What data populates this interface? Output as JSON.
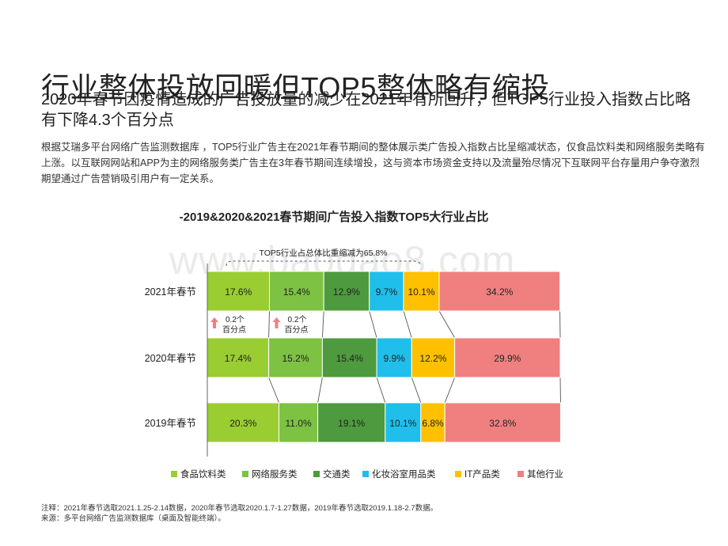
{
  "page": {
    "title": "行业整体投放回暖但TOP5整体略有缩投",
    "subtitle": "2020年春节因疫情造成的广告投放量的减少在2021年有所回升，但TOP5行业投入指数占比略有下降4.3个百分点",
    "description": "根据艾瑞多平台网络广告监测数据库 ，TOP5行业广告主在2021年春节期间的整体展示类广告投入指数占比呈缩减状态，仅食品饮料类和网络服务类略有上涨。以互联网网站和APP为主的网络服务类广告主在3年春节期间连续增投，这与资本市场资金支持以及流量殆尽情况下互联网平台存量用户争夺激烈期望通过广告营销吸引用户有一定关系。",
    "note": "注释：2021年春节选取2021.1.25-2.14数据，2020年春节选取2020.1.7-1.27数据，2019年春节选取2019.1.18-2.7数据。",
    "source": "来源：多平台网络广告监测数据库（桌面及智能终端）。",
    "watermark": "www.baogao8.com"
  },
  "chart_data": {
    "type": "bar",
    "orientation": "horizontal",
    "stacked": true,
    "title": "-2019&2020&2021春节期间广告投入指数TOP5大行业占比",
    "categories": [
      "2021年春节",
      "2020年春节",
      "2019年春节"
    ],
    "value_unit": "%",
    "xlim": [
      0,
      100
    ],
    "series": [
      {
        "name": "食品饮料类",
        "color": "#9ACD32",
        "values": [
          17.6,
          17.4,
          20.3
        ],
        "labels": [
          "17.6%",
          "17.4%",
          "20.3%"
        ]
      },
      {
        "name": "网络服务类",
        "color": "#7DC242",
        "values": [
          15.4,
          15.2,
          11.0
        ],
        "labels": [
          "15.4%",
          "15.2%",
          "11.0%"
        ]
      },
      {
        "name": "交通类",
        "color": "#4E9A3E",
        "values": [
          12.9,
          15.4,
          19.1
        ],
        "labels": [
          "12.9%",
          "15.4%",
          "19.1%"
        ]
      },
      {
        "name": "化妆浴室用品类",
        "color": "#1FBEEB",
        "values": [
          9.7,
          9.9,
          10.1
        ],
        "labels": [
          "9.7%",
          "9.9%",
          "10.1%"
        ]
      },
      {
        "name": "IT产品类",
        "color": "#FFC000",
        "values": [
          10.1,
          12.2,
          6.8
        ],
        "labels": [
          "10.1%",
          "12.2%",
          "6.8%"
        ]
      },
      {
        "name": "其他行业",
        "color": "#F08080",
        "values": [
          34.2,
          29.9,
          32.8
        ],
        "labels": [
          "34.2%",
          "29.9%",
          "32.8%"
        ]
      }
    ],
    "legend_position": "bottom",
    "annotations": [
      {
        "type": "bracket",
        "row": "2021年春节",
        "text": "TOP5行业占总体比重缩减为65.8%"
      },
      {
        "type": "arrow-up",
        "between": [
          "2021年春节",
          "2020年春节"
        ],
        "series": "食品饮料类",
        "lines": [
          "0.2个",
          "百分点"
        ]
      },
      {
        "type": "arrow-up",
        "between": [
          "2021年春节",
          "2020年春节"
        ],
        "series": "网络服务类",
        "lines": [
          "0.2个",
          "百分点"
        ]
      }
    ]
  }
}
